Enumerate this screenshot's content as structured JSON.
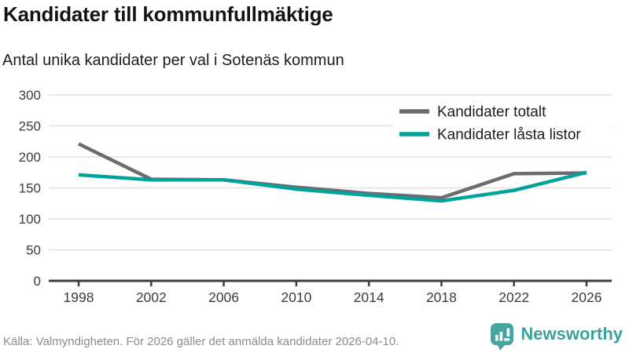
{
  "header": {
    "title": "Kandidater till kommunfullmäktige",
    "subtitle": "Antal unika kandidater per val i Sotenäs kommun"
  },
  "chart_data": {
    "type": "line",
    "x": [
      1998,
      2002,
      2006,
      2010,
      2014,
      2018,
      2022,
      2026
    ],
    "series": [
      {
        "name": "Kandidater totalt",
        "color": "#6e6a71",
        "values": [
          221,
          164,
          163,
          151,
          141,
          134,
          173,
          174
        ]
      },
      {
        "name": "Kandidater låsta listor",
        "color": "#00a39c",
        "values": [
          171,
          163,
          163,
          148,
          138,
          129,
          146,
          175
        ]
      }
    ],
    "title": "Kandidater till kommunfullmäktige",
    "subtitle": "Antal unika kandidater per val i Sotenäs kommun",
    "xlabel": "",
    "ylabel": "",
    "ylim": [
      0,
      300
    ],
    "ytick_step": 50,
    "yticks": [
      0,
      50,
      100,
      150,
      200,
      250,
      300
    ],
    "grid": true,
    "legend_position": "top-right"
  },
  "footer": {
    "source": "Källa: Valmyndigheten. För 2026 gäller det anmälda kandidater 2026-04-10.",
    "brand": "Newsworthy"
  },
  "colors": {
    "grid": "#e7e7e7",
    "axis": "#3d3d3d",
    "tick_label": "#3d3d3d",
    "legend_text": "#1d1d1d",
    "source_text": "#8c8c8c",
    "brand_teal": "#3ba19b"
  }
}
